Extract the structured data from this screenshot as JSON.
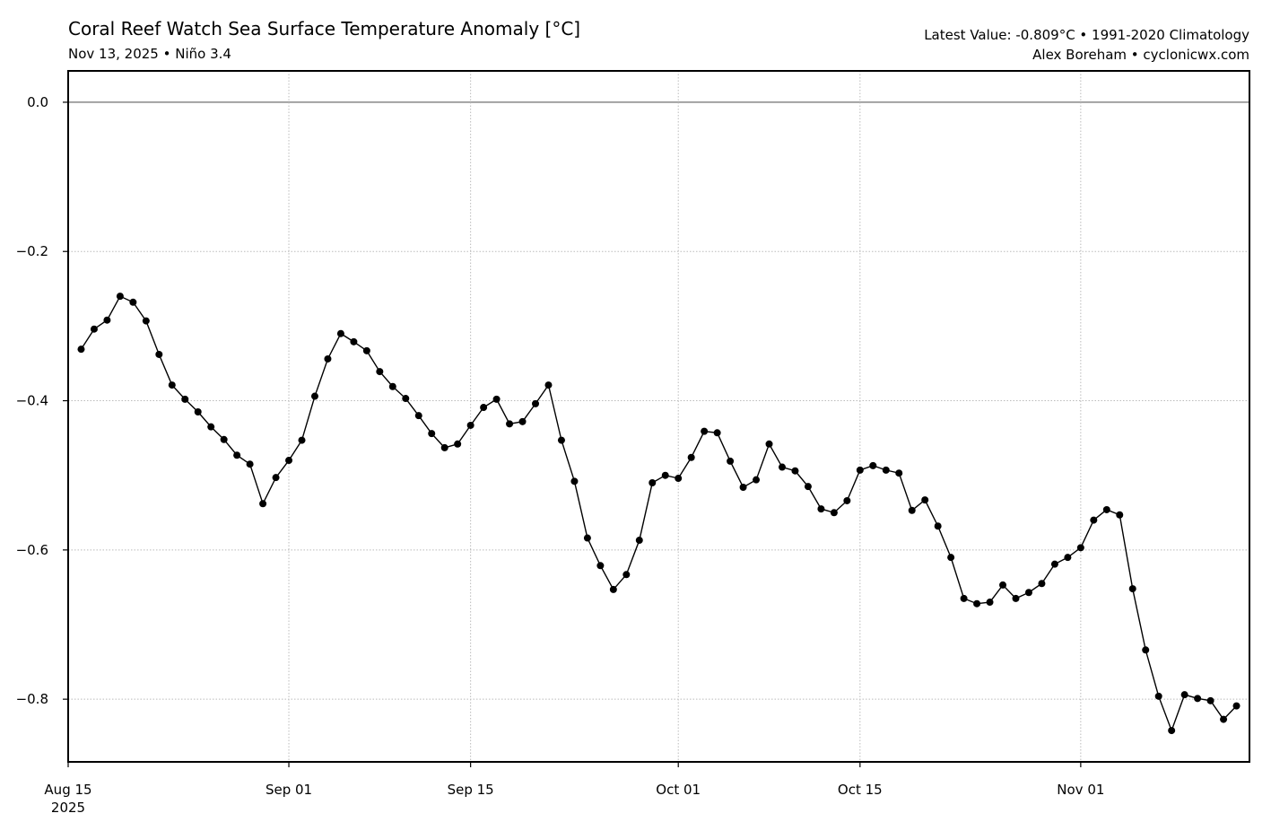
{
  "header": {
    "title": "Coral Reef Watch Sea Surface Temperature Anomaly [°C]",
    "subtitle": "Nov 13, 2025 • Niño 3.4",
    "latest": "Latest Value: -0.809°C • 1991-2020 Climatology",
    "credit": "Alex Boreham • cyclonicwx.com"
  },
  "chart_data": {
    "type": "line",
    "title": "Coral Reef Watch Sea Surface Temperature Anomaly [°C]",
    "xlabel": "",
    "ylabel": "",
    "x_start": "2025-08-16",
    "x_step_days": 1,
    "xlim_days_from_aug15": [
      0,
      91
    ],
    "ylim": [
      -0.884,
      0.042
    ],
    "grid": true,
    "reference_line": 0.0,
    "yticks": [
      0.0,
      -0.2,
      -0.4,
      -0.6,
      -0.8
    ],
    "ytick_labels": [
      "0.0",
      "−0.2",
      "−0.4",
      "−0.6",
      "−0.8"
    ],
    "xticks_days_from_aug15": [
      0,
      17,
      31,
      47,
      61,
      78
    ],
    "xtick_labels": [
      "Aug 15",
      "Sep 01",
      "Sep 15",
      "Oct 01",
      "Oct 15",
      "Nov 01"
    ],
    "xtick_year_label": "2025",
    "line_color": "#000000",
    "series": [
      {
        "name": "Niño 3.4 SST anomaly",
        "values": [
          -0.331,
          -0.304,
          -0.292,
          -0.26,
          -0.268,
          -0.293,
          -0.338,
          -0.379,
          -0.398,
          -0.415,
          -0.435,
          -0.452,
          -0.473,
          -0.485,
          -0.538,
          -0.503,
          -0.48,
          -0.453,
          -0.394,
          -0.344,
          -0.31,
          -0.321,
          -0.333,
          -0.361,
          -0.381,
          -0.397,
          -0.42,
          -0.444,
          -0.463,
          -0.458,
          -0.433,
          -0.409,
          -0.398,
          -0.431,
          -0.428,
          -0.404,
          -0.379,
          -0.453,
          -0.508,
          -0.584,
          -0.621,
          -0.653,
          -0.633,
          -0.587,
          -0.51,
          -0.5,
          -0.504,
          -0.476,
          -0.441,
          -0.443,
          -0.481,
          -0.516,
          -0.506,
          -0.458,
          -0.489,
          -0.494,
          -0.515,
          -0.545,
          -0.55,
          -0.534,
          -0.493,
          -0.487,
          -0.493,
          -0.497,
          -0.547,
          -0.533,
          -0.568,
          -0.61,
          -0.665,
          -0.672,
          -0.67,
          -0.647,
          -0.665,
          -0.657,
          -0.645,
          -0.619,
          -0.61,
          -0.597,
          -0.56,
          -0.546,
          -0.553,
          -0.652,
          -0.734,
          -0.796,
          -0.842,
          -0.794,
          -0.799,
          -0.802,
          -0.827,
          -0.809
        ]
      }
    ]
  }
}
